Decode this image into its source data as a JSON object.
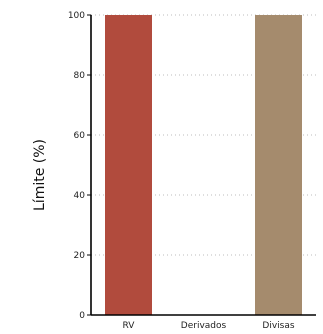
{
  "chart_data": {
    "type": "bar",
    "title": "",
    "xlabel": "",
    "ylabel": "Límite (%)",
    "ylim": [
      0,
      100
    ],
    "yticks": [
      0,
      20,
      40,
      60,
      80,
      100
    ],
    "grid": true,
    "categories": [
      "RV",
      "Derivados",
      "Divisas"
    ],
    "values": [
      100,
      0,
      100
    ],
    "colors": [
      "#b14b3d",
      "#b14b3d",
      "#a58b6d"
    ]
  }
}
